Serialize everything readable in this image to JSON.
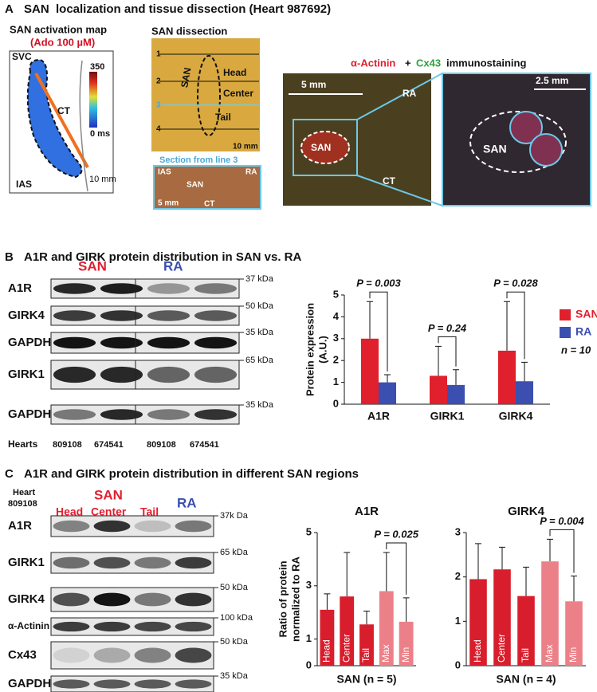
{
  "panel_a": {
    "letter": "A",
    "title": "SAN  localization and tissue dissection (Heart 987692)",
    "map": {
      "title": "SAN activation map",
      "condition": "(Ado 100 µM)",
      "labels": [
        "SVC",
        "CT",
        "IAS"
      ],
      "scale": "10 mm",
      "colorbar_max": "350",
      "colorbar_min": "0 ms"
    },
    "dissection": {
      "title": "SAN dissection",
      "lines": [
        "1",
        "2",
        "3",
        "4"
      ],
      "labels": [
        "SAN",
        "Head",
        "Center",
        "Tail"
      ],
      "scale": "10 mm"
    },
    "section": {
      "title": "Section from line 3",
      "labels": [
        "IAS",
        "RA",
        "SAN",
        "CT"
      ],
      "scale": "5 mm"
    },
    "immuno": {
      "stain1": "α-Actinin",
      "plus": "+",
      "stain2": "Cx43",
      "suffix": "immunostaining",
      "left_labels": [
        "RA",
        "SAN",
        "CT"
      ],
      "left_scale": "5 mm",
      "right_label": "SAN",
      "right_scale": "2.5 mm"
    }
  },
  "panel_b": {
    "letter": "B",
    "title": "A1R and GIRK protein distribution in SAN vs. RA",
    "blot": {
      "groups": [
        "SAN",
        "RA"
      ],
      "rows": [
        "A1R",
        "GIRK4",
        "GAPDH",
        "GIRK1",
        "GAPDH"
      ],
      "kda": [
        "37 kDa",
        "50 kDa",
        "35 kDa",
        "65 kDa",
        "35 kDa"
      ],
      "hearts_label": "Hearts",
      "hearts": [
        "809108",
        "674541",
        "809108",
        "674541"
      ]
    }
  },
  "panel_c": {
    "letter": "C",
    "title": "A1R and GIRK protein distribution in different SAN regions",
    "blot": {
      "heart": [
        "Heart",
        "809108"
      ],
      "groups": [
        "SAN",
        "RA"
      ],
      "regions": [
        "Head",
        "Center",
        "Tail"
      ],
      "rows": [
        "A1R",
        "GIRK1",
        "GIRK4",
        "α-Actinin",
        "Cx43",
        "GAPDH"
      ],
      "kda": [
        "37k Da",
        "65 kDa",
        "50 kDa",
        "100 kDa",
        "50 kDa",
        "35 kDa"
      ]
    }
  },
  "chart_data": [
    {
      "type": "grouped_bar",
      "ylabel": [
        "Protein expression",
        "(A.U.)"
      ],
      "categories": [
        "A1R",
        "GIRK1",
        "GIRK4"
      ],
      "series": [
        {
          "name": "SAN",
          "color": "#e0202c",
          "values": [
            3.0,
            1.3,
            2.45
          ],
          "errors": [
            1.7,
            1.35,
            2.25
          ]
        },
        {
          "name": "RA",
          "color": "#3a4fb0",
          "values": [
            1.0,
            0.88,
            1.05
          ],
          "errors": [
            0.35,
            0.7,
            0.87
          ]
        }
      ],
      "annotations": [
        "P = 0.003",
        "P = 0.24",
        "P = 0.028"
      ],
      "legend_note": "n = 10",
      "ylim": [
        0,
        5
      ],
      "yticks": [
        0,
        1,
        2,
        3,
        4,
        5
      ]
    },
    {
      "type": "bar",
      "title": "A1R",
      "ylabel": [
        "Ratio of protein",
        "normalized to RA"
      ],
      "xlabel": "SAN (n = 5)",
      "categories": [
        "Head",
        "Center",
        "Tail",
        "Max",
        "Min"
      ],
      "values": [
        2.1,
        2.6,
        1.55,
        2.8,
        1.65
      ],
      "errors": [
        0.6,
        1.65,
        0.5,
        1.45,
        0.9
      ],
      "colors": [
        "#d81e2c",
        "#d81e2c",
        "#d81e2c",
        "#ec8088",
        "#ec8088"
      ],
      "annotation": "P = 0.025",
      "ylim": [
        0,
        5
      ],
      "yticks": [
        0,
        1,
        3,
        5
      ]
    },
    {
      "type": "bar",
      "title": "GIRK4",
      "xlabel": "SAN (n = 4)",
      "categories": [
        "Head",
        "Center",
        "Tail",
        "Max",
        "Min"
      ],
      "values": [
        1.95,
        2.17,
        1.57,
        2.35,
        1.45
      ],
      "errors": [
        0.8,
        0.5,
        0.65,
        0.5,
        0.57
      ],
      "colors": [
        "#d81e2c",
        "#d81e2c",
        "#d81e2c",
        "#ec8088",
        "#ec8088"
      ],
      "annotation": "P = 0.004",
      "ylim": [
        0,
        3
      ],
      "yticks": [
        0,
        1,
        2,
        3
      ]
    }
  ]
}
